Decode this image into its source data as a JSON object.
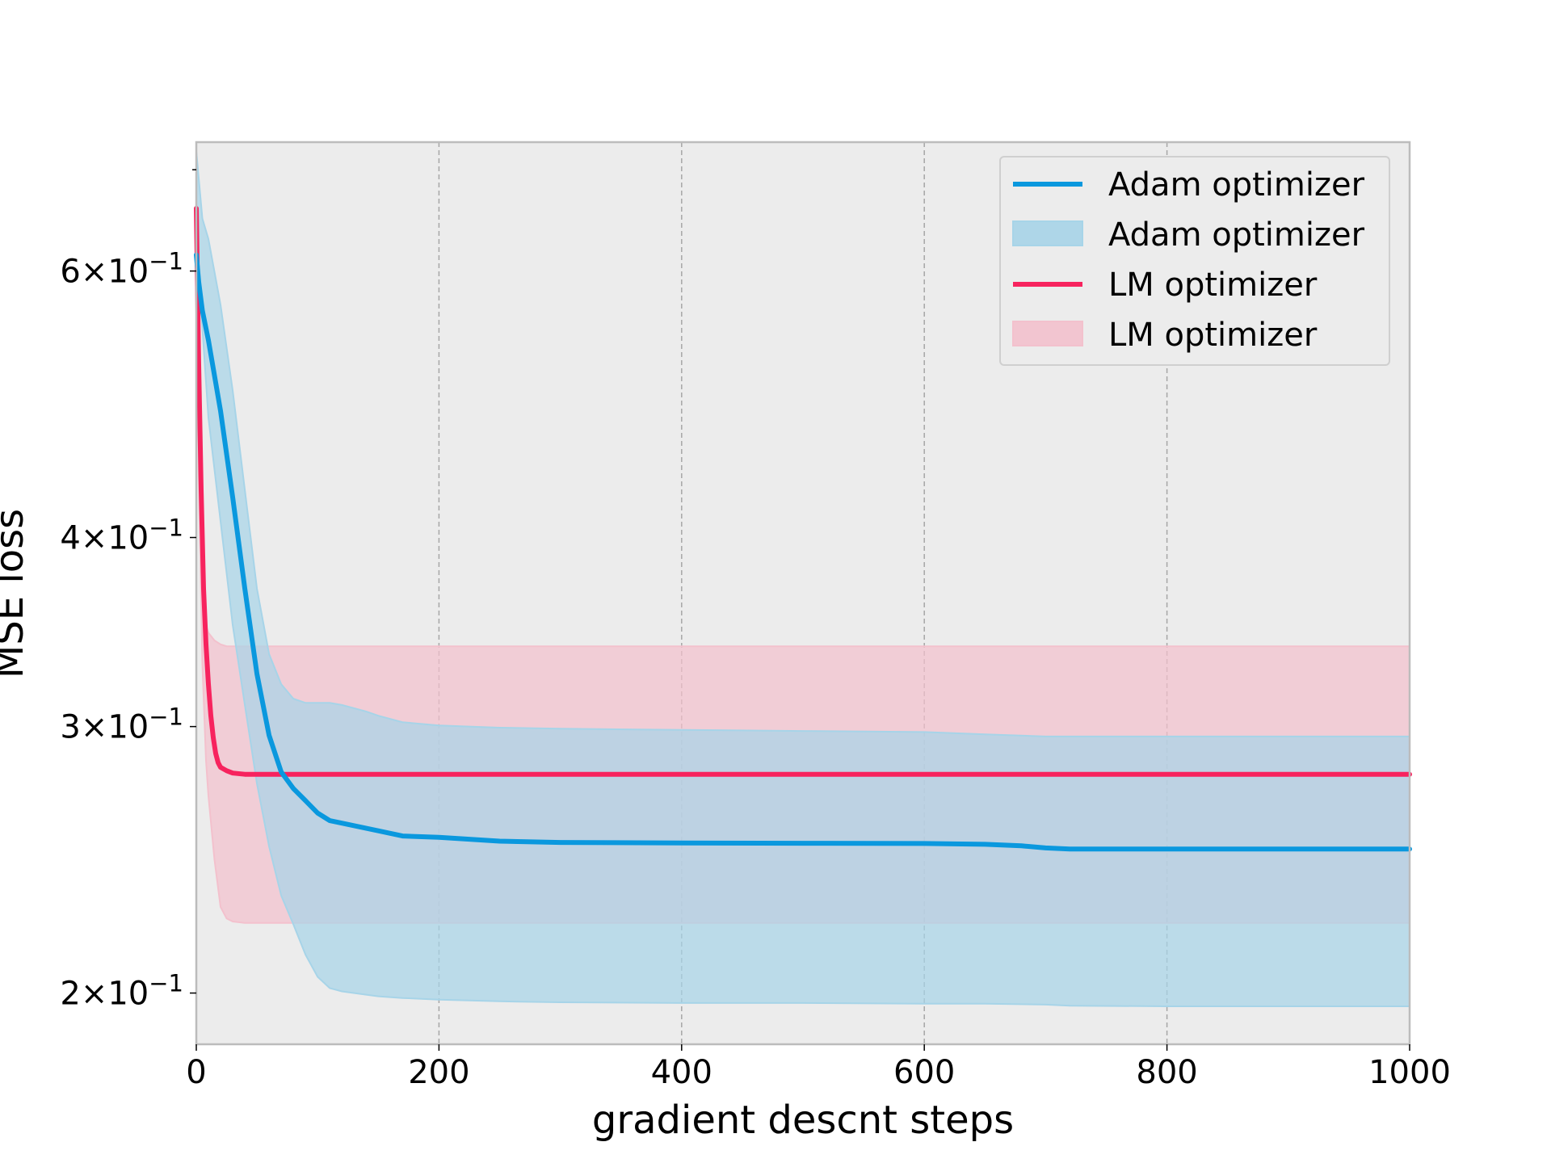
{
  "chart_data": {
    "type": "line",
    "title": "",
    "xlabel": "gradient descnt steps",
    "ylabel": "MSE loss",
    "xlim": [
      0,
      1000
    ],
    "ylim": [
      0.185,
      0.73
    ],
    "yscale": "log",
    "grid": "vertical dashed at x ticks",
    "legend_position": "top-right",
    "background": "#ececec",
    "x_ticks": [
      {
        "value": 0,
        "label": "0"
      },
      {
        "value": 200,
        "label": "200"
      },
      {
        "value": 400,
        "label": "400"
      },
      {
        "value": 600,
        "label": "600"
      },
      {
        "value": 800,
        "label": "800"
      },
      {
        "value": 1000,
        "label": "1000"
      }
    ],
    "y_ticks": [
      {
        "value": 0.2,
        "mantissa": "2",
        "times": "×",
        "base": "10",
        "exp": "−1"
      },
      {
        "value": 0.3,
        "mantissa": "3",
        "times": "×",
        "base": "10",
        "exp": "−1"
      },
      {
        "value": 0.4,
        "mantissa": "4",
        "times": "×",
        "base": "10",
        "exp": "−1"
      },
      {
        "value": 0.6,
        "mantissa": "6",
        "times": "×",
        "base": "10",
        "exp": "−1"
      }
    ],
    "legend": [
      {
        "label": "Adam optimizer",
        "kind": "line",
        "color": "#0a98de"
      },
      {
        "label": "Adam optimizer",
        "kind": "band",
        "color": "#a7d4e8"
      },
      {
        "label": "LM optimizer",
        "kind": "line",
        "color": "#f7235e"
      },
      {
        "label": "LM optimizer",
        "kind": "band",
        "color": "#f3c1cd"
      }
    ],
    "series": [
      {
        "legend_index": 2,
        "color": "#f7235e",
        "x": [
          0,
          2,
          4,
          6,
          8,
          10,
          12,
          14,
          16,
          18,
          20,
          25,
          30,
          40,
          60,
          100,
          200,
          400,
          600,
          800,
          1000
        ],
        "y": [
          0.66,
          0.52,
          0.43,
          0.37,
          0.34,
          0.32,
          0.305,
          0.295,
          0.288,
          0.284,
          0.282,
          0.2805,
          0.2795,
          0.279,
          0.279,
          0.279,
          0.279,
          0.279,
          0.279,
          0.279,
          0.279
        ]
      },
      {
        "legend_index": 0,
        "color": "#0a98de",
        "x": [
          0,
          2,
          5,
          10,
          20,
          30,
          40,
          50,
          60,
          70,
          80,
          90,
          100,
          110,
          120,
          150,
          170,
          200,
          250,
          300,
          400,
          500,
          600,
          650,
          680,
          700,
          720,
          800,
          900,
          1000
        ],
        "y": [
          0.615,
          0.59,
          0.565,
          0.54,
          0.485,
          0.425,
          0.37,
          0.325,
          0.296,
          0.28,
          0.273,
          0.268,
          0.263,
          0.26,
          0.259,
          0.256,
          0.254,
          0.2535,
          0.252,
          0.2515,
          0.2513,
          0.2512,
          0.2511,
          0.2508,
          0.2502,
          0.2494,
          0.249,
          0.249,
          0.249,
          0.249
        ]
      }
    ],
    "bands": [
      {
        "legend_index": 3,
        "color": "#f3c1cd",
        "x": [
          0,
          2,
          5,
          8,
          10,
          15,
          20,
          25,
          30,
          40,
          60,
          100,
          200,
          400,
          600,
          800,
          1000
        ],
        "upper": [
          0.68,
          0.49,
          0.38,
          0.35,
          0.346,
          0.342,
          0.34,
          0.339,
          0.339,
          0.339,
          0.339,
          0.339,
          0.339,
          0.339,
          0.339,
          0.339,
          0.339
        ],
        "lower": [
          0.68,
          0.44,
          0.33,
          0.285,
          0.27,
          0.245,
          0.228,
          0.224,
          0.223,
          0.2225,
          0.2225,
          0.2225,
          0.2225,
          0.2225,
          0.2225,
          0.2225,
          0.2225
        ]
      },
      {
        "legend_index": 1,
        "color": "#a7d4e8",
        "x": [
          0,
          5,
          10,
          20,
          30,
          40,
          50,
          60,
          70,
          80,
          90,
          100,
          110,
          120,
          140,
          150,
          170,
          200,
          250,
          300,
          400,
          500,
          600,
          650,
          700,
          720,
          800,
          900,
          1000
        ],
        "upper": [
          0.72,
          0.65,
          0.63,
          0.57,
          0.5,
          0.43,
          0.37,
          0.335,
          0.32,
          0.313,
          0.311,
          0.311,
          0.311,
          0.31,
          0.307,
          0.305,
          0.302,
          0.3005,
          0.2995,
          0.299,
          0.2985,
          0.298,
          0.2975,
          0.2965,
          0.2955,
          0.2955,
          0.2955,
          0.2955,
          0.2955
        ],
        "lower": [
          0.63,
          0.55,
          0.48,
          0.41,
          0.35,
          0.31,
          0.275,
          0.25,
          0.232,
          0.222,
          0.212,
          0.205,
          0.2015,
          0.2005,
          0.1995,
          0.199,
          0.1985,
          0.198,
          0.1975,
          0.1972,
          0.197,
          0.197,
          0.1968,
          0.1968,
          0.1965,
          0.1962,
          0.196,
          0.196,
          0.196
        ]
      }
    ]
  }
}
